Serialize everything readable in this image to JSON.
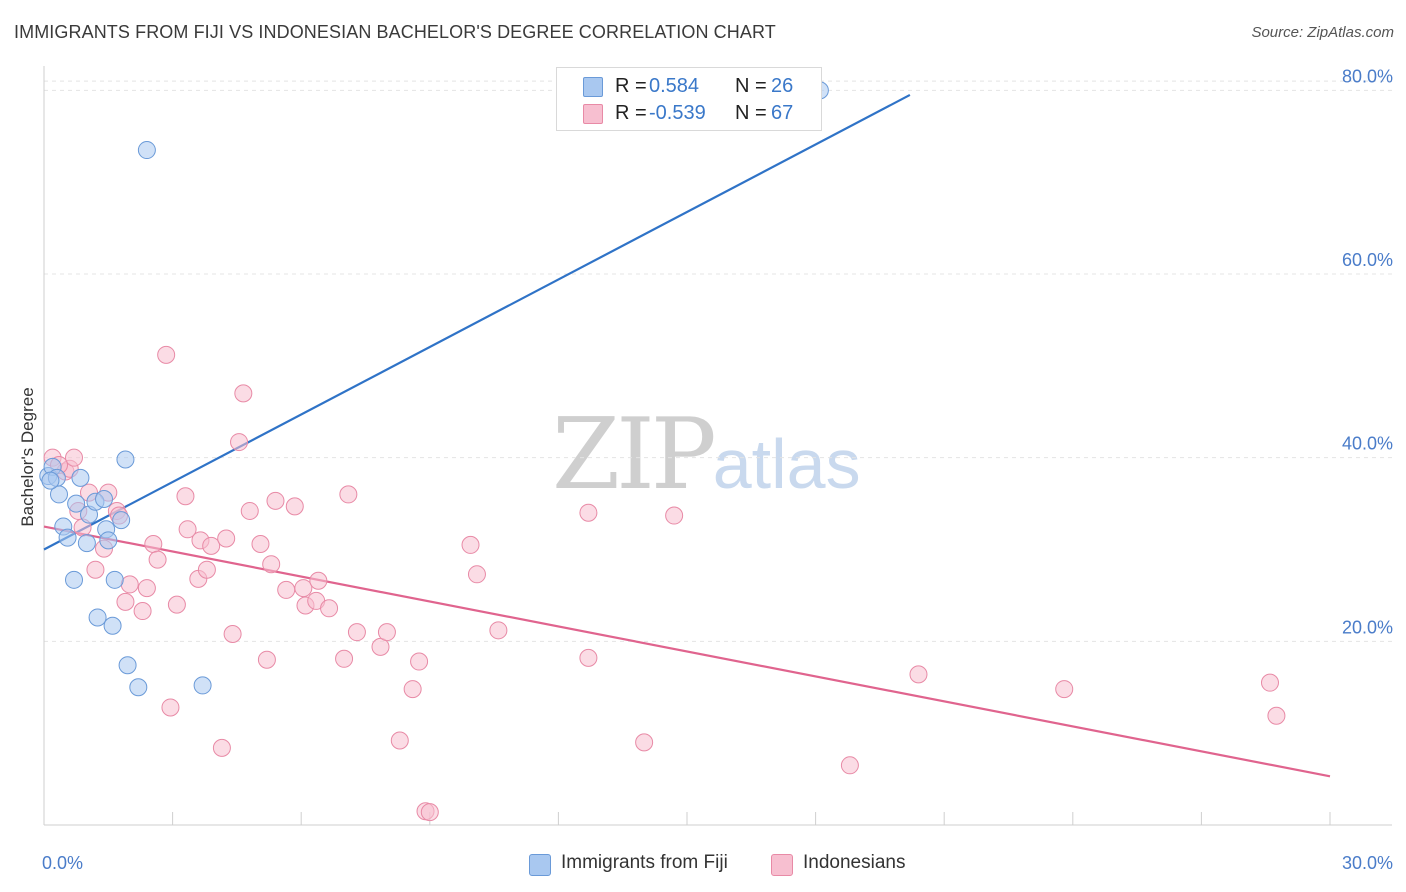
{
  "title": "IMMIGRANTS FROM FIJI VS INDONESIAN BACHELOR'S DEGREE CORRELATION CHART",
  "source": "Source: ZipAtlas.com",
  "watermark": {
    "zip": "ZIP",
    "atlas": "atlas"
  },
  "legend_top": {
    "rows": [
      {
        "r_label": "R =",
        "r_value": "0.584",
        "n_label": "N =",
        "n_value": "26",
        "color": "#a9c8f0",
        "border": "#6a9ad8"
      },
      {
        "r_label": "R =",
        "r_value": "-0.539",
        "n_label": "N =",
        "n_value": "67",
        "color": "#f7bfd0",
        "border": "#e88aa6"
      }
    ]
  },
  "legend_bottom": {
    "items": [
      {
        "label": "Immigrants from Fiji",
        "color": "#a9c8f0",
        "border": "#6a9ad8"
      },
      {
        "label": "Indonesians",
        "color": "#f7bfd0",
        "border": "#e88aa6"
      }
    ]
  },
  "chart_data": {
    "type": "scatter",
    "title": "IMMIGRANTS FROM FIJI VS INDONESIAN BACHELOR'S DEGREE CORRELATION CHART",
    "xlabel": "",
    "ylabel": "Bachelor's Degree",
    "xlim": [
      0,
      30
    ],
    "ylim": [
      0,
      82
    ],
    "x_tick_labels": [
      {
        "value": 0,
        "label": "0.0%"
      },
      {
        "value": 30,
        "label": "30.0%"
      }
    ],
    "y_tick_labels": [
      {
        "value": 20,
        "label": "20.0%"
      },
      {
        "value": 40,
        "label": "40.0%"
      },
      {
        "value": 60,
        "label": "60.0%"
      },
      {
        "value": 80,
        "label": "80.0%"
      }
    ],
    "grid": true,
    "legend_position": "top-center",
    "series": [
      {
        "name": "Immigrants from Fiji",
        "color": "#a9c8f0",
        "edge": "#6a9ad8",
        "trend_color": "#2f73c7",
        "trend": {
          "x": [
            0,
            20.2
          ],
          "y": [
            30.0,
            79.5
          ]
        },
        "points": [
          {
            "x": 0.1,
            "y": 38.0
          },
          {
            "x": 0.2,
            "y": 39.0
          },
          {
            "x": 0.3,
            "y": 37.8
          },
          {
            "x": 0.35,
            "y": 36.0
          },
          {
            "x": 0.45,
            "y": 32.5
          },
          {
            "x": 0.55,
            "y": 31.3
          },
          {
            "x": 0.7,
            "y": 26.7
          },
          {
            "x": 0.75,
            "y": 35.0
          },
          {
            "x": 0.85,
            "y": 37.8
          },
          {
            "x": 1.0,
            "y": 30.7
          },
          {
            "x": 1.05,
            "y": 33.8
          },
          {
            "x": 1.2,
            "y": 35.2
          },
          {
            "x": 1.25,
            "y": 22.6
          },
          {
            "x": 1.4,
            "y": 35.5
          },
          {
            "x": 1.45,
            "y": 32.2
          },
          {
            "x": 1.5,
            "y": 31.0
          },
          {
            "x": 1.6,
            "y": 21.7
          },
          {
            "x": 1.65,
            "y": 26.7
          },
          {
            "x": 1.8,
            "y": 33.2
          },
          {
            "x": 1.9,
            "y": 39.8
          },
          {
            "x": 1.95,
            "y": 17.4
          },
          {
            "x": 2.2,
            "y": 15.0
          },
          {
            "x": 2.4,
            "y": 73.5
          },
          {
            "x": 3.7,
            "y": 15.2
          },
          {
            "x": 18.1,
            "y": 80.0
          },
          {
            "x": 0.15,
            "y": 37.5
          }
        ]
      },
      {
        "name": "Indonesians",
        "color": "#f7bfd0",
        "edge": "#e88aa6",
        "trend_color": "#e0648e",
        "trend": {
          "x": [
            0,
            30
          ],
          "y": [
            32.5,
            5.3
          ]
        },
        "points": [
          {
            "x": 0.2,
            "y": 40.0
          },
          {
            "x": 0.5,
            "y": 38.5
          },
          {
            "x": 0.6,
            "y": 38.8
          },
          {
            "x": 0.7,
            "y": 40.0
          },
          {
            "x": 0.8,
            "y": 34.2
          },
          {
            "x": 0.9,
            "y": 32.4
          },
          {
            "x": 1.05,
            "y": 36.2
          },
          {
            "x": 1.2,
            "y": 27.8
          },
          {
            "x": 1.4,
            "y": 30.1
          },
          {
            "x": 1.5,
            "y": 36.2
          },
          {
            "x": 1.7,
            "y": 34.2
          },
          {
            "x": 1.75,
            "y": 33.7
          },
          {
            "x": 1.9,
            "y": 24.3
          },
          {
            "x": 2.0,
            "y": 26.2
          },
          {
            "x": 2.3,
            "y": 23.3
          },
          {
            "x": 2.4,
            "y": 25.8
          },
          {
            "x": 2.55,
            "y": 30.6
          },
          {
            "x": 2.65,
            "y": 28.9
          },
          {
            "x": 2.85,
            "y": 51.2
          },
          {
            "x": 2.95,
            "y": 12.8
          },
          {
            "x": 3.1,
            "y": 24.0
          },
          {
            "x": 3.3,
            "y": 35.8
          },
          {
            "x": 3.35,
            "y": 32.2
          },
          {
            "x": 3.6,
            "y": 26.8
          },
          {
            "x": 3.65,
            "y": 31.0
          },
          {
            "x": 3.8,
            "y": 27.8
          },
          {
            "x": 3.9,
            "y": 30.4
          },
          {
            "x": 4.15,
            "y": 8.4
          },
          {
            "x": 4.25,
            "y": 31.2
          },
          {
            "x": 4.4,
            "y": 20.8
          },
          {
            "x": 4.55,
            "y": 41.7
          },
          {
            "x": 4.65,
            "y": 47.0
          },
          {
            "x": 4.8,
            "y": 34.2
          },
          {
            "x": 5.05,
            "y": 30.6
          },
          {
            "x": 5.2,
            "y": 18.0
          },
          {
            "x": 5.3,
            "y": 28.4
          },
          {
            "x": 5.4,
            "y": 35.3
          },
          {
            "x": 5.65,
            "y": 25.6
          },
          {
            "x": 5.85,
            "y": 34.7
          },
          {
            "x": 6.05,
            "y": 25.8
          },
          {
            "x": 6.1,
            "y": 23.9
          },
          {
            "x": 6.4,
            "y": 26.6
          },
          {
            "x": 6.35,
            "y": 24.4
          },
          {
            "x": 6.65,
            "y": 23.6
          },
          {
            "x": 7.0,
            "y": 18.1
          },
          {
            "x": 7.1,
            "y": 36.0
          },
          {
            "x": 7.3,
            "y": 21.0
          },
          {
            "x": 7.85,
            "y": 19.4
          },
          {
            "x": 8.0,
            "y": 21.0
          },
          {
            "x": 8.3,
            "y": 9.2
          },
          {
            "x": 8.6,
            "y": 14.8
          },
          {
            "x": 8.75,
            "y": 17.8
          },
          {
            "x": 8.9,
            "y": 1.5
          },
          {
            "x": 9.0,
            "y": 1.4
          },
          {
            "x": 9.95,
            "y": 30.5
          },
          {
            "x": 10.1,
            "y": 27.3
          },
          {
            "x": 10.6,
            "y": 21.2
          },
          {
            "x": 12.7,
            "y": 18.2
          },
          {
            "x": 12.7,
            "y": 34.0
          },
          {
            "x": 14.0,
            "y": 9.0
          },
          {
            "x": 14.7,
            "y": 33.7
          },
          {
            "x": 18.8,
            "y": 6.5
          },
          {
            "x": 20.4,
            "y": 16.4
          },
          {
            "x": 23.8,
            "y": 14.8
          },
          {
            "x": 28.6,
            "y": 15.5
          },
          {
            "x": 28.75,
            "y": 11.9
          },
          {
            "x": 0.35,
            "y": 39.2
          }
        ]
      }
    ]
  }
}
